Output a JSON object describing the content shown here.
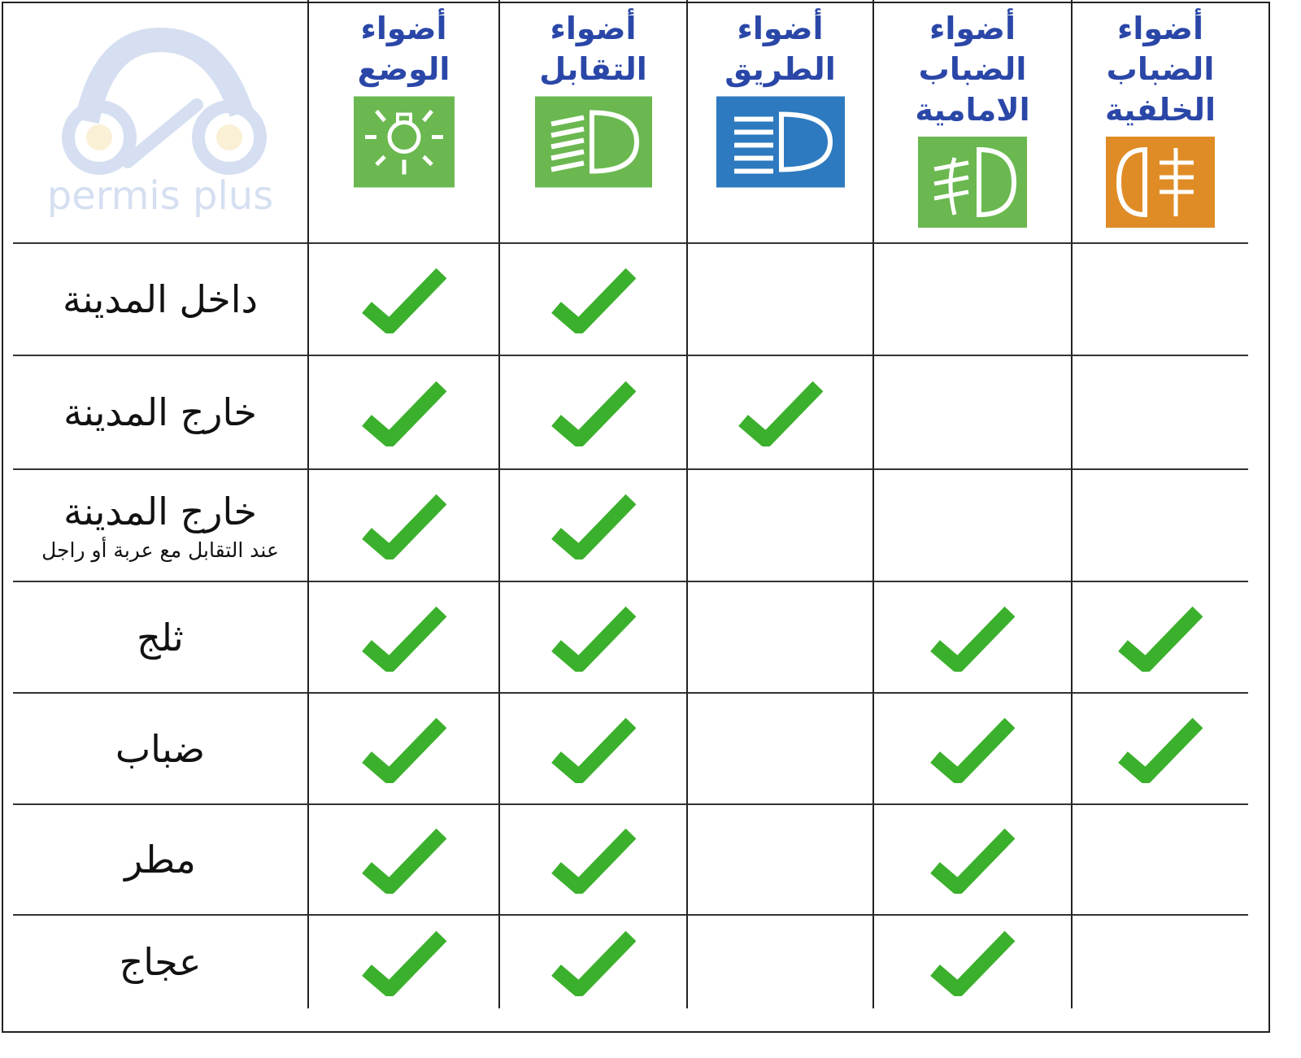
{
  "logo": {
    "text": "permis plus",
    "colors": {
      "blue": "#8aa6d8",
      "yellow": "#f3d58a"
    }
  },
  "columns": [
    {
      "label": "أضواء الوضع",
      "icon": "position-light-icon",
      "color": "#6ab84f"
    },
    {
      "label": "أضواء التقابل",
      "icon": "low-beam-icon",
      "color": "#6ab84f"
    },
    {
      "label": "أضواء الطريق",
      "icon": "high-beam-icon",
      "color": "#2d7ac0"
    },
    {
      "label": "أضواء الضباب الامامية",
      "icon": "front-fog-light-icon",
      "color": "#6ab84f"
    },
    {
      "label": "أضواء الضباب الخلفية",
      "icon": "rear-fog-light-icon",
      "color": "#e08c26"
    }
  ],
  "rows": [
    {
      "label": "داخل المدينة",
      "sub": "",
      "checks": [
        true,
        true,
        false,
        false,
        false
      ]
    },
    {
      "label": "خارج المدينة",
      "sub": "",
      "checks": [
        true,
        true,
        true,
        false,
        false
      ]
    },
    {
      "label": "خارج المدينة",
      "sub": "عند التقابل مع عربة أو راجل",
      "checks": [
        true,
        true,
        false,
        false,
        false
      ]
    },
    {
      "label": "ثلج",
      "sub": "",
      "checks": [
        true,
        true,
        false,
        true,
        true
      ]
    },
    {
      "label": "ضباب",
      "sub": "",
      "checks": [
        true,
        true,
        false,
        true,
        true
      ]
    },
    {
      "label": "مطر",
      "sub": "",
      "checks": [
        true,
        true,
        false,
        true,
        false
      ]
    },
    {
      "label": "عجاج",
      "sub": "",
      "checks": [
        true,
        true,
        false,
        true,
        false
      ]
    }
  ],
  "check_color": "#3bb02c"
}
